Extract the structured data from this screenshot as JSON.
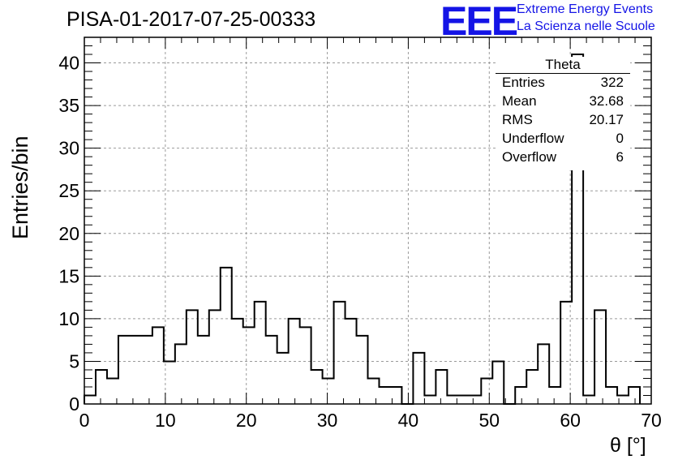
{
  "chart_data": {
    "type": "histogram",
    "title": "PISA-01-2017-07-25-00333",
    "xlabel": "θ [°]",
    "ylabel": "Entries/bin",
    "xlim": [
      0,
      70
    ],
    "ylim": [
      0,
      43
    ],
    "x_ticks": [
      "0",
      "10",
      "20",
      "30",
      "40",
      "50",
      "60",
      "70"
    ],
    "y_ticks": [
      "0",
      "5",
      "10",
      "15",
      "20",
      "25",
      "30",
      "35",
      "40"
    ],
    "grid": true,
    "bin_width": 1.4,
    "values": [
      1,
      4,
      3,
      8,
      8,
      8,
      9,
      5,
      7,
      11,
      8,
      11,
      16,
      10,
      9,
      12,
      8,
      6,
      10,
      9,
      4,
      3,
      12,
      10,
      8,
      3,
      2,
      2,
      0,
      6,
      1,
      4,
      1,
      1,
      1,
      3,
      5,
      0,
      2,
      4,
      7,
      2,
      12,
      41,
      1,
      11,
      2,
      1,
      2
    ],
    "stats_box": {
      "title": "Theta",
      "rows": [
        {
          "label": "Entries",
          "value": "322"
        },
        {
          "label": "Mean",
          "value": "32.68"
        },
        {
          "label": "RMS",
          "value": "20.17"
        },
        {
          "label": "Underflow",
          "value": "0"
        },
        {
          "label": "Overflow",
          "value": "6"
        }
      ]
    }
  },
  "branding": {
    "logo": "EEE",
    "line1": "Extreme Energy Events",
    "line2": "La Scienza nelle Scuole",
    "color": "#1414e6"
  }
}
